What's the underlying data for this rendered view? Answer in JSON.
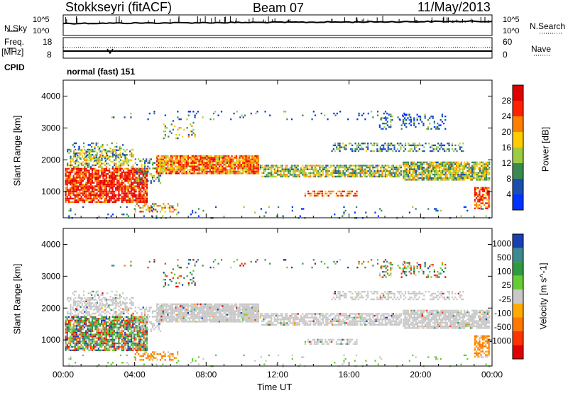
{
  "header": {
    "station": "Stokkseyri (fitACF)",
    "beam": "Beam 07",
    "date": "11/May/2013"
  },
  "top_panel": {
    "nsky_label": "N.Sky",
    "nsearch_label": "N.Search",
    "left_tick_top": "10^5",
    "left_tick_bottom": "10^0",
    "right_tick_top": "10^5",
    "right_tick_bottom": "10^0",
    "freq_label": "Freq.",
    "freq_unit": "[MHz]",
    "freq_ticks": [
      "18",
      "8"
    ],
    "nave_label": "Nave",
    "nave_ticks": [
      "60",
      "0"
    ],
    "cpid_label": "CPID",
    "cpid_value": "normal (fast) 151"
  },
  "x_axis": {
    "label": "Time UT",
    "ticks": [
      "00:00",
      "04:00",
      "08:00",
      "12:00",
      "16:00",
      "20:00",
      "00:00"
    ]
  },
  "y_axis": {
    "label": "Slant Range [km]",
    "ticks": [
      "1000",
      "2000",
      "3000",
      "4000"
    ]
  },
  "power_scale": {
    "label": "Power [dB]",
    "ticks": [
      "4",
      "8",
      "12",
      "16",
      "20",
      "24",
      "28"
    ],
    "colors": [
      "#0033ff",
      "#1a4fb0",
      "#3a8a50",
      "#9ccc40",
      "#ffcc00",
      "#ff8000",
      "#ff2000",
      "#e00000"
    ]
  },
  "velocity_scale": {
    "label": "Velocity [m s^-1]",
    "ticks": [
      "1000",
      "500",
      "100",
      "25",
      "-25",
      "-100",
      "-500",
      "-1000"
    ],
    "colors": [
      "#1a3fb0",
      "#3a8a90",
      "#2f9a40",
      "#66cc33",
      "#c8c8c8",
      "#ffaa00",
      "#ff7700",
      "#ff3300",
      "#e00000"
    ]
  },
  "chart_data": {
    "type": "heatmap",
    "x_range_hours": [
      0,
      24
    ],
    "y_range_km": [
      180,
      4500
    ],
    "panels": [
      {
        "name": "Power",
        "unit": "dB",
        "range": [
          0,
          30
        ]
      },
      {
        "name": "Velocity",
        "unit": "m s^-1",
        "range": [
          -1000,
          1000
        ]
      }
    ]
  }
}
